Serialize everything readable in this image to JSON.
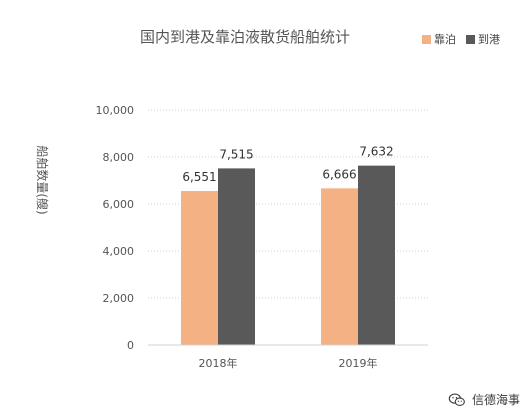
{
  "watermark": {
    "text": "信德海事",
    "icon": "wechat-icon"
  },
  "chart_data": {
    "type": "bar",
    "title": "国内到港及靠泊液散货船舶统计",
    "ylabel": "船舶数量(艘)",
    "xlabel": "",
    "categories": [
      "2018年",
      "2019年"
    ],
    "series": [
      {
        "name": "靠泊",
        "color": "#F4B183",
        "values": [
          6551,
          6666
        ],
        "labels": [
          "6,551",
          "6,666"
        ]
      },
      {
        "name": "到港",
        "color": "#595959",
        "values": [
          7515,
          7632
        ],
        "labels": [
          "7,515",
          "7,632"
        ]
      }
    ],
    "ylim": [
      0,
      10000
    ],
    "yticks": [
      0,
      2000,
      4000,
      6000,
      8000,
      10000
    ],
    "ytick_labels": [
      "0",
      "2,000",
      "4,000",
      "6,000",
      "8,000",
      "10,000"
    ],
    "grid": true,
    "legend": "top-right"
  }
}
